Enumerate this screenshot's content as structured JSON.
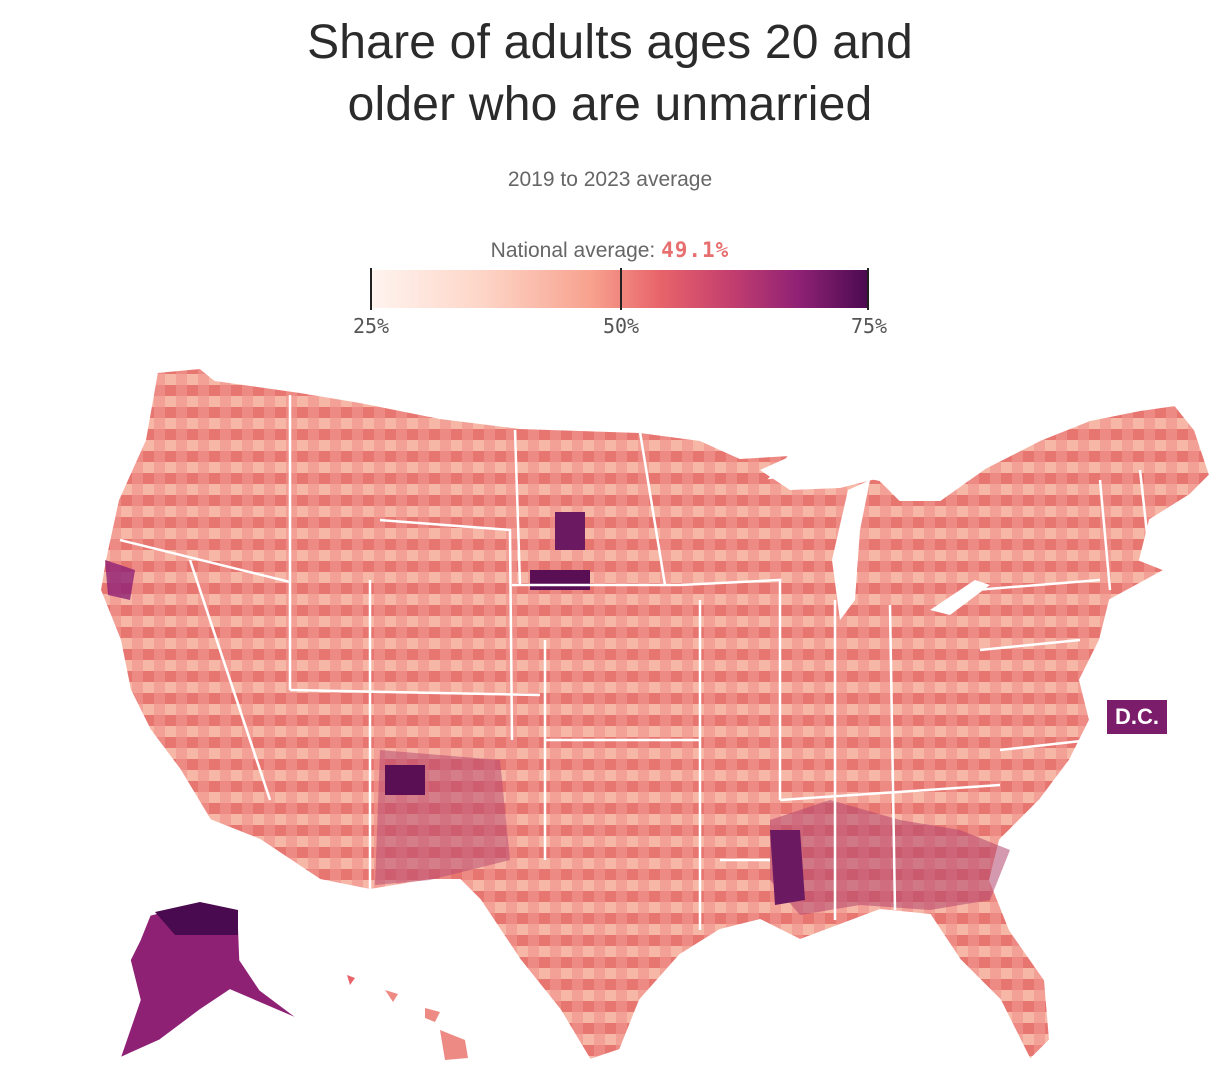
{
  "title_line1": "Share of adults ages 20 and",
  "title_line2": "older who are unmarried",
  "subtitle": "2019 to 2023 average",
  "national_average_label": "National average:",
  "national_average_value": "49.1%",
  "legend": {
    "min_label": "25%",
    "mid_label": "50%",
    "max_label": "75%",
    "colors": [
      "#fff4ef",
      "#fdd6c8",
      "#f8a28f",
      "#e8646a",
      "#c43f6e",
      "#8f2175",
      "#4a0a4f"
    ]
  },
  "dc_label": "D.C.",
  "dc_color": "#7b1d6a",
  "map_fill_base": "#ee8a84",
  "state_border_color": "#ffffff"
}
